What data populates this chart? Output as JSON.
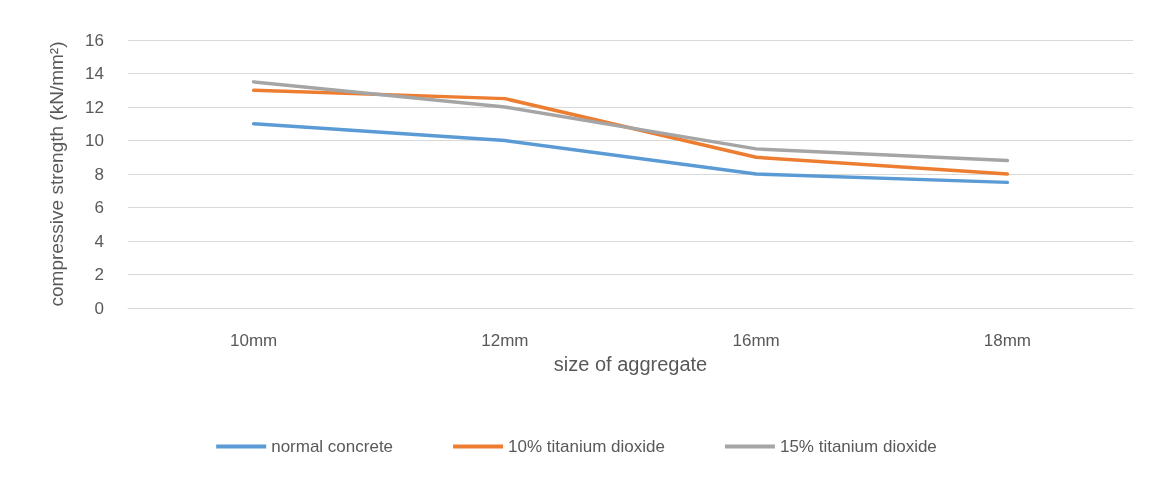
{
  "chart_data": {
    "type": "line",
    "xlabel": "size of aggregate",
    "ylabel": "compressive strength (kN/mm²)",
    "categories": [
      "10mm",
      "12mm",
      "16mm",
      "18mm"
    ],
    "series": [
      {
        "name": "normal concrete",
        "color": "#5b9bd5",
        "values": [
          11,
          10,
          8,
          7.5
        ]
      },
      {
        "name": "10% titanium dioxide",
        "color": "#ed7d31",
        "values": [
          13,
          12.5,
          9,
          8
        ]
      },
      {
        "name": "15% titanium dioxide",
        "color": "#a5a5a5",
        "values": [
          13.5,
          12,
          9.5,
          8.8
        ]
      }
    ],
    "ylim": [
      0,
      16
    ],
    "yticks": [
      0,
      2,
      4,
      6,
      8,
      10,
      12,
      14,
      16
    ],
    "grid": "y",
    "legend": "bottom",
    "marker": "none",
    "line_style": "solid"
  }
}
